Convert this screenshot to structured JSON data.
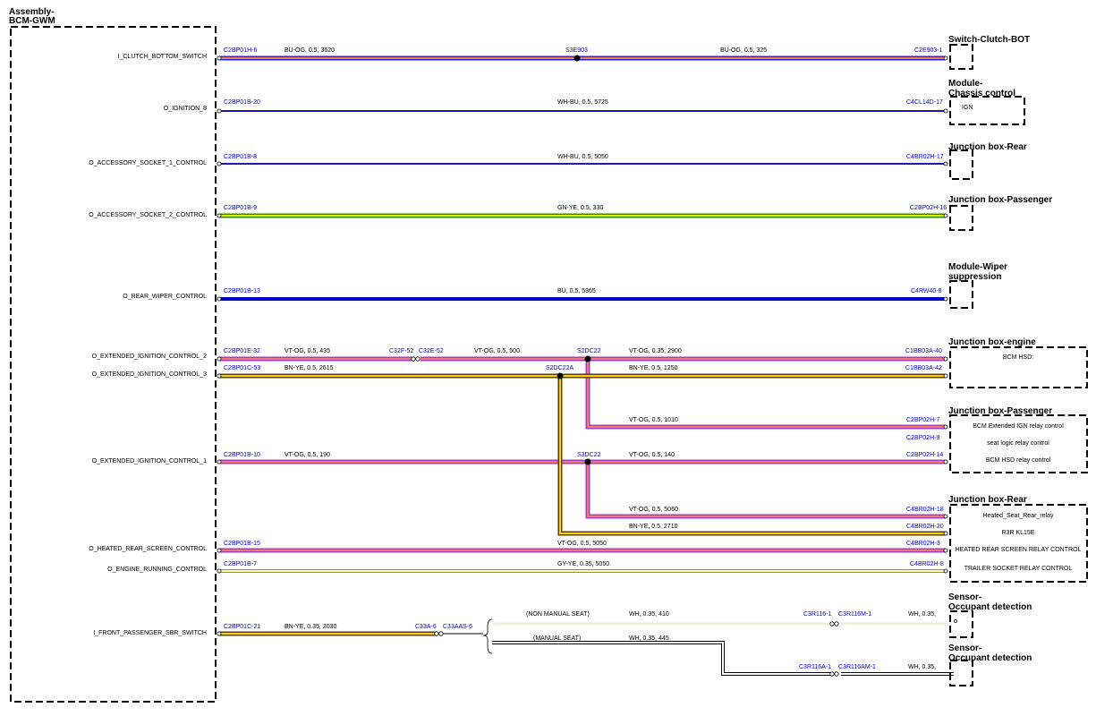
{
  "assembly": {
    "title": [
      "Assembly-",
      "BCM-GWM"
    ],
    "pins": [
      "I_CLUTCH_BOTTOM_SWITCH",
      "O_IGNITION_8",
      "O_ACCESSORY_SOCKET_1_CONTROL",
      "O_ACCESSORY_SOCKET_2_CONTROL",
      "O_REAR_WIPER_CONTROL",
      "O_EXTENDED_IGNITION_CONTROL_2",
      "O_EXTENDED_IGNITION_CONTROL_3",
      "O_EXTENDED_IGNITION_CONTROL_1",
      "O_HEATED_REAR_SCREEN_CONTROL",
      "O_ENGINE_RUNNING_CONTROL",
      "I_FRONT_PASSENGER_SBR_SWITCH"
    ]
  },
  "components": [
    {
      "title": [
        "Switch-Clutch-BOT"
      ]
    },
    {
      "title": [
        "Module-",
        "Chassis control"
      ],
      "labels": [
        "IGN"
      ]
    },
    {
      "title": [
        "Junction box-Rear"
      ]
    },
    {
      "title": [
        "Junction box-Passenger"
      ]
    },
    {
      "title": [
        "Module-Wiper",
        "suppression"
      ]
    },
    {
      "title": [
        "Junction box-engine"
      ],
      "labels": [
        "BCM HSD:"
      ]
    },
    {
      "title": [
        "Junction box-Passenger"
      ],
      "labels": [
        "BCM Extended IGN relay control",
        "seat logic relay control",
        "BCM HSD relay control"
      ]
    },
    {
      "title": [
        "Junction box-Rear"
      ],
      "labels": [
        "Heated_Seat_Rear_relay",
        "R3R KL15E",
        "HEATED REAR SCREEN RELAY CONTROL",
        "TRAILER SOCKET RELAY CONTROL"
      ]
    },
    {
      "title": [
        "Sensor-",
        "Occupant detection"
      ]
    },
    {
      "title": [
        "Sensor-",
        "Occupant detection"
      ]
    }
  ],
  "wires": [
    {
      "labels": [
        "C2BP01H-6",
        "BU-OG,  0.5,  3620",
        "S3E903",
        "BU-OG,  0.5,  325",
        "C2E903-1"
      ]
    },
    {
      "labels": [
        "C2BP01B-20",
        "WH-BU,  0.5,  5725",
        "C4CL14D-17"
      ]
    },
    {
      "labels": [
        "C2BP01B-8",
        "WH-BU,  0.5,  5050",
        "C4BR02H-17"
      ]
    },
    {
      "labels": [
        "C2BP01B-9",
        "GN-YE,  0.5,  330",
        "C2BP02H-16"
      ]
    },
    {
      "labels": [
        "C2BP01B-13",
        "BU,  0.5,  5365",
        "C4RW40-8"
      ]
    },
    {
      "labels": [
        "C2BP01E-32",
        "VT-OG,  0.5,  435",
        "C32F-52",
        "C32E-52",
        "VT-OG,  0.5,  500",
        "S2DC22",
        "VT-OG,  0.35,  2900",
        "C1BB03A-40"
      ]
    },
    {
      "labels": [
        "C2BP01C-53",
        "BN-YE,  0.5,  2615",
        "S2DC22A",
        "BN-YE,  0.5,  1250",
        "C1BB03A-42"
      ]
    },
    {
      "labels": [
        "VT-OG,  0.5,  1010",
        "C2BP02H-7"
      ]
    },
    {
      "labels": [
        "C2BP02H-9"
      ]
    },
    {
      "labels": [
        "C2BP01B-10",
        "VT-OG,  0.5,  190",
        "S3DC22",
        "VT-OG,  0.5,  140",
        "C2BP02H-14"
      ]
    },
    {
      "labels": [
        "VT-OG,  0.5,  5060",
        "C4BR02H-18"
      ]
    },
    {
      "labels": [
        "BN-YE,  0.5,  2710",
        "C4BR02H-20"
      ]
    },
    {
      "labels": [
        "C2BP01B-15",
        "VT-OG,  0.5,  5050",
        "C4BR02H-3"
      ]
    },
    {
      "labels": [
        "C2BP01B-7",
        "GY-YE,  0.35,  5050",
        "C4BR02H-8"
      ]
    },
    {
      "labels": [
        "C2BP01C-21",
        "BN-YE,  0.35,  2030",
        "C33A-6",
        "C33AAS-6"
      ]
    },
    {
      "labels": [
        "(NON MANUAL SEAT)",
        "WH,  0.35,  410",
        "C3R116-1",
        "C3R116M-1",
        "WH,  0.35,"
      ]
    },
    {
      "labels": [
        "(MANUAL SEAT)",
        "WH,  0.35,  445"
      ]
    },
    {
      "labels": [
        "C3R116A-1",
        "C3R116AM-1",
        "WH,  0.35,"
      ]
    }
  ]
}
